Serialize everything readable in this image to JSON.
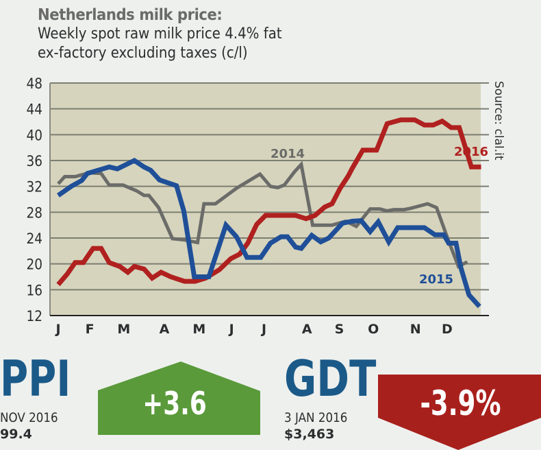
{
  "header": {
    "title": "Netherlands milk price:",
    "subtitle_line1": "Weekly spot raw milk price 4.4% fat",
    "subtitle_line2": "ex-factory excluding taxes (c/l)"
  },
  "source": "Source: clal.it",
  "colors": {
    "plot_bg": "#d6d4bd",
    "grid": "#7d7e72",
    "s2014": "#6b6c69",
    "s2015": "#1f4f98",
    "s2016": "#b0201f",
    "ppi_badge": "#5a9a3a",
    "gdt_badge": "#a8201c",
    "kpi_label": "#1b5a88"
  },
  "chart_data": {
    "type": "line",
    "title": "Netherlands milk price: Weekly spot raw milk price 4.4% fat ex-factory excluding taxes (c/l)",
    "xlabel": "",
    "ylabel": "",
    "ylim": [
      12,
      48
    ],
    "xlim": [
      1,
      53.2
    ],
    "yticks": [
      48,
      44,
      40,
      36,
      32,
      28,
      24,
      20,
      16,
      12
    ],
    "grid": true,
    "month_ticks": [
      {
        "label": "J",
        "week": 1
      },
      {
        "label": "F",
        "week": 4.9
      },
      {
        "label": "M",
        "week": 9.1
      },
      {
        "label": "A",
        "week": 14.1
      },
      {
        "label": "M",
        "week": 18.4
      },
      {
        "label": "J",
        "week": 22.4
      },
      {
        "label": "J",
        "week": 26.4
      },
      {
        "label": "A",
        "week": 31.7
      },
      {
        "label": "S",
        "week": 35.7
      },
      {
        "label": "O",
        "week": 39.9
      },
      {
        "label": "N",
        "week": 45.1
      },
      {
        "label": "D",
        "week": 49.0
      }
    ],
    "series": [
      {
        "name": "2014",
        "color_key": "s2014",
        "points": [
          [
            1,
            32.4
          ],
          [
            1.8,
            33.5
          ],
          [
            3.1,
            33.5
          ],
          [
            4.8,
            34.1
          ],
          [
            6.3,
            34
          ],
          [
            7.3,
            32.2
          ],
          [
            9,
            32.2
          ],
          [
            10.7,
            31.3
          ],
          [
            11.6,
            30.6
          ],
          [
            12.2,
            30.6
          ],
          [
            13.4,
            28.7
          ],
          [
            15.1,
            23.9
          ],
          [
            16.6,
            23.7
          ],
          [
            18.2,
            23.3
          ],
          [
            19,
            29.3
          ],
          [
            20.4,
            29.3
          ],
          [
            23,
            31.7
          ],
          [
            25.9,
            33.9
          ],
          [
            27.2,
            32
          ],
          [
            28.1,
            31.8
          ],
          [
            28.9,
            32.2
          ],
          [
            30.2,
            34.3
          ],
          [
            31,
            35.4
          ],
          [
            32.4,
            26
          ],
          [
            34.8,
            26
          ],
          [
            36.5,
            26.6
          ],
          [
            37.8,
            25.8
          ],
          [
            39.5,
            28.5
          ],
          [
            40.7,
            28.5
          ],
          [
            41.6,
            28.2
          ],
          [
            42.4,
            28.4
          ],
          [
            43.7,
            28.4
          ],
          [
            44.5,
            28.6
          ],
          [
            46.6,
            29.3
          ],
          [
            47.7,
            28.7
          ],
          [
            49.2,
            23.5
          ],
          [
            50.4,
            19.6
          ],
          [
            51.5,
            20.3
          ]
        ],
        "label": "2014"
      },
      {
        "name": "2015",
        "color_key": "s2015",
        "points": [
          [
            1,
            30.6
          ],
          [
            2.6,
            32
          ],
          [
            3.9,
            32.9
          ],
          [
            4.6,
            34
          ],
          [
            7.3,
            35
          ],
          [
            8.3,
            34.7
          ],
          [
            10.4,
            36
          ],
          [
            11.6,
            35
          ],
          [
            12.4,
            34.5
          ],
          [
            13.5,
            33
          ],
          [
            15.6,
            32.1
          ],
          [
            16.5,
            28.2
          ],
          [
            17.8,
            18
          ],
          [
            19.6,
            18
          ],
          [
            21.7,
            26
          ],
          [
            23,
            24.2
          ],
          [
            24.3,
            21
          ],
          [
            26,
            21
          ],
          [
            27.2,
            23.2
          ],
          [
            28.5,
            24.2
          ],
          [
            29.3,
            24.2
          ],
          [
            30.3,
            22.6
          ],
          [
            31,
            22.4
          ],
          [
            32.3,
            24.4
          ],
          [
            33.4,
            23.4
          ],
          [
            34.4,
            24
          ],
          [
            36.1,
            26.3
          ],
          [
            37.3,
            26.6
          ],
          [
            38.4,
            26.7
          ],
          [
            39.5,
            25
          ],
          [
            40.5,
            26.5
          ],
          [
            41.8,
            23.4
          ],
          [
            42.9,
            25.6
          ],
          [
            46.2,
            25.6
          ],
          [
            47.5,
            24.5
          ],
          [
            48.6,
            24.5
          ],
          [
            49.2,
            23.2
          ],
          [
            50.1,
            23.2
          ],
          [
            50.7,
            19.4
          ],
          [
            51.7,
            15.2
          ],
          [
            53,
            13.4
          ]
        ],
        "label": "2015"
      },
      {
        "name": "2016",
        "color_key": "s2016",
        "points": [
          [
            1,
            16.8
          ],
          [
            2.1,
            18.4
          ],
          [
            3.1,
            20.2
          ],
          [
            4.1,
            20.2
          ],
          [
            5.3,
            22.4
          ],
          [
            6.3,
            22.4
          ],
          [
            7.3,
            20.2
          ],
          [
            8.6,
            19.6
          ],
          [
            9.6,
            18.7
          ],
          [
            10.4,
            19.6
          ],
          [
            11.6,
            19.2
          ],
          [
            12.6,
            17.8
          ],
          [
            13.7,
            18.7
          ],
          [
            14.9,
            18
          ],
          [
            16.6,
            17.3
          ],
          [
            17.9,
            17.3
          ],
          [
            19.2,
            17.8
          ],
          [
            20.9,
            19.1
          ],
          [
            22.3,
            20.8
          ],
          [
            23.4,
            21.5
          ],
          [
            24.4,
            23.2
          ],
          [
            25.5,
            26.1
          ],
          [
            26.6,
            27.5
          ],
          [
            28.5,
            27.5
          ],
          [
            30.3,
            27.5
          ],
          [
            31.6,
            27
          ],
          [
            32.7,
            27.5
          ],
          [
            33.9,
            28.8
          ],
          [
            34.8,
            29.3
          ],
          [
            35.8,
            31.7
          ],
          [
            36.8,
            33.6
          ],
          [
            37.3,
            34.8
          ],
          [
            38.6,
            37.6
          ],
          [
            40.3,
            37.6
          ],
          [
            41.6,
            41.7
          ],
          [
            43.3,
            42.3
          ],
          [
            45,
            42.3
          ],
          [
            46.2,
            41.5
          ],
          [
            47.3,
            41.5
          ],
          [
            48.4,
            42.1
          ],
          [
            49.5,
            41.1
          ],
          [
            50.5,
            41.1
          ],
          [
            52,
            35
          ],
          [
            53.2,
            35
          ]
        ],
        "label": "2016"
      }
    ]
  },
  "ppi": {
    "label": "PPI",
    "period": "NOV 2016",
    "value": "99.4",
    "change": "+3.6",
    "direction": "up"
  },
  "gdt": {
    "label": "GDT",
    "period": "3 JAN 2016",
    "value": "$3,463",
    "change": "-3.9%",
    "direction": "down"
  }
}
